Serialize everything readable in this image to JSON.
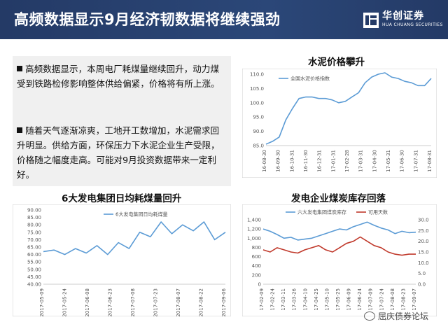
{
  "header": {
    "title": "高频数据显示9月经济韧数据将继续强劲",
    "logo_cn": "华创证券",
    "logo_en": "HUA CHUANG SECURITIES",
    "bg_color": "#243a66"
  },
  "text_panel": {
    "para1": "高频数据显示，本周电厂耗煤量继续回升，动力煤受到铁路检修影响整体供给偏紧，价格将有所上涨。",
    "para2": "随着天气逐渐凉爽，工地开工数增加，水泥需求回升明显。供给方面，环保压力下水泥企业生产受限，价格随之幅度走高。可能对9月投资数据带来一定利好。"
  },
  "titles": {
    "cement": "水泥价格攀升",
    "coal_use": "6大发电集团日均耗煤量回升",
    "coal_stock": "发电企业煤炭库存回落"
  },
  "watermark": "屈庆债券论坛",
  "chart_data": [
    {
      "id": "cement",
      "type": "line",
      "series": [
        {
          "name": "全国水泥价格指数",
          "color": "#5b9bd5",
          "x": [
            "16-08-30",
            "16-09-15",
            "16-09-30",
            "16-10-15",
            "16-10-31",
            "16-11-15",
            "16-11-30",
            "16-12-15",
            "16-12-31",
            "17-01-15",
            "17-01-31",
            "17-02-15",
            "17-02-28",
            "17-03-15",
            "17-03-31",
            "17-04-15",
            "17-04-30",
            "17-05-15",
            "17-05-31",
            "17-06-15",
            "17-06-30",
            "17-07-15",
            "17-07-31",
            "17-08-15",
            "17-08-31",
            "17-09-08"
          ],
          "values": [
            85.5,
            86.5,
            88,
            94,
            98,
            101.5,
            102,
            102,
            101.5,
            101.5,
            101,
            100,
            100.5,
            102,
            103.5,
            107,
            109,
            110,
            110.5,
            109,
            108.5,
            107.5,
            107,
            106,
            106,
            108.5
          ]
        }
      ],
      "yticks": [
        85,
        90,
        95,
        100,
        105,
        110
      ],
      "ytick_labels": [
        "85.0",
        "90.0",
        "95.0",
        "100.0",
        "105.0",
        "110.0"
      ],
      "ylim": [
        85,
        110
      ],
      "xtick_labels": [
        "16-08-30",
        "16-09-30",
        "16-10-31",
        "16-11-30",
        "16-12-31",
        "17-01-31",
        "17-02-28",
        "17-03-31",
        "17-04-30",
        "17-05-31",
        "17-06-30",
        "17-07-31",
        "17-08-31"
      ]
    },
    {
      "id": "coal_use",
      "type": "line",
      "series": [
        {
          "name": "6大发电集团日均耗煤量",
          "color": "#5b9bd5",
          "x": [
            "2017-05-09",
            "2017-05-16",
            "2017-05-24",
            "2017-06-01",
            "2017-06-08",
            "2017-06-15",
            "2017-06-23",
            "2017-07-01",
            "2017-07-08",
            "2017-07-15",
            "2017-07-23",
            "2017-07-31",
            "2017-08-07",
            "2017-08-14",
            "2017-08-22",
            "2017-08-29",
            "2017-09-06",
            "2017-09-08"
          ],
          "values": [
            62,
            63,
            60,
            64,
            61,
            66,
            60,
            68,
            64,
            75,
            72,
            82,
            74,
            80,
            76,
            82,
            70,
            75
          ]
        }
      ],
      "yticks": [
        40,
        45,
        50,
        55,
        60,
        65,
        70,
        75,
        80,
        85,
        90
      ],
      "ytick_labels": [
        "40.00",
        "45.00",
        "50.00",
        "55.00",
        "60.00",
        "65.00",
        "70.00",
        "75.00",
        "80.00",
        "85.00",
        "90.00"
      ],
      "ylim": [
        40,
        90
      ],
      "xtick_labels": [
        "2017-05-09",
        "2017-05-24",
        "2017-06-08",
        "2017-06-23",
        "2017-07-08",
        "2017-07-23",
        "2017-08-07",
        "2017-08-22",
        "2017-09-06"
      ]
    },
    {
      "id": "coal_stock",
      "type": "line",
      "y2": true,
      "series": [
        {
          "name": "六大发电集团煤炭库存",
          "color": "#5b9bd5",
          "axis": "left",
          "values": [
            1200,
            1150,
            1080,
            1000,
            1020,
            960,
            980,
            1000,
            1050,
            1100,
            1150,
            1200,
            1180,
            1250,
            1300,
            1350,
            1280,
            1220,
            1180,
            1100,
            1150,
            1120,
            1130
          ]
        },
        {
          "name": "可用天数",
          "color": "#c0392b",
          "axis": "right",
          "values": [
            16,
            15,
            17,
            16,
            15,
            14.5,
            16,
            17,
            18,
            16,
            15,
            17,
            19,
            20,
            22,
            20,
            18,
            17,
            15,
            14,
            13.5,
            14,
            14
          ]
        }
      ],
      "yticks": [
        0,
        200,
        400,
        600,
        800,
        1000,
        1200,
        1400
      ],
      "ytick_labels": [
        "0",
        "200",
        "400",
        "600",
        "800",
        "1,000",
        "1,200",
        "1,400"
      ],
      "ylim": [
        0,
        1400
      ],
      "y2ticks": [
        0,
        5,
        10,
        15,
        20,
        25,
        30
      ],
      "y2tick_labels": [
        "0.0",
        "5.0",
        "10.0",
        "15.0",
        "20.0",
        "25.0",
        "30.0"
      ],
      "y2lim": [
        0,
        30
      ],
      "xtick_labels": [
        "17-02-09",
        "17-02-24",
        "17-03-11",
        "17-03-26",
        "17-04-10",
        "17-04-25",
        "17-05-10",
        "17-05-25",
        "17-06-09",
        "17-06-24",
        "17-07-09",
        "17-07-24",
        "17-08-08",
        "17-08-23",
        "17-09-07"
      ]
    }
  ]
}
